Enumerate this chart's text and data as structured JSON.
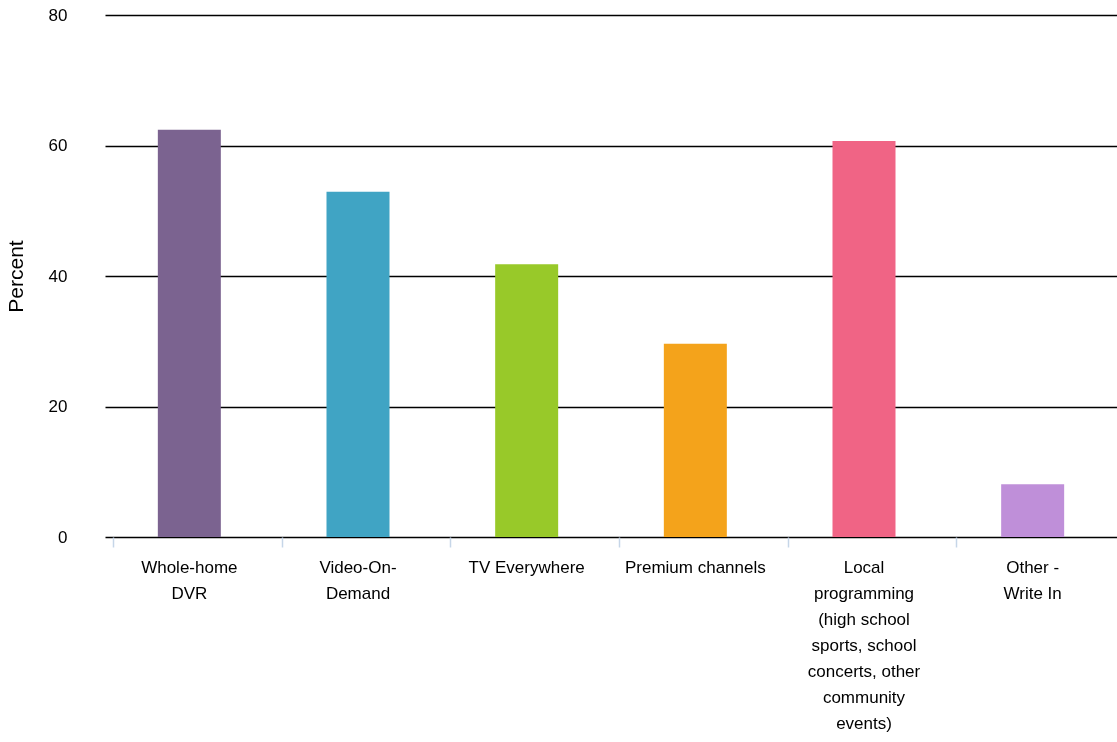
{
  "chart_data": {
    "type": "bar",
    "ylabel": "Percent",
    "categories": [
      "Whole-home DVR",
      "Video-On-Demand",
      "TV Everywhere",
      "Premium channels",
      "Local programming (high school sports, school concerts, other community events)",
      "Other - Write In"
    ],
    "values": [
      62.4,
      52.9,
      41.8,
      29.6,
      60.7,
      8.1
    ],
    "colors": [
      "#7b6390",
      "#40a4c4",
      "#98c929",
      "#f4a31b",
      "#f06485",
      "#bf8fd9"
    ],
    "ylim": [
      0,
      80
    ],
    "yticks": [
      0,
      20,
      40,
      60,
      80
    ],
    "grid": "y"
  }
}
